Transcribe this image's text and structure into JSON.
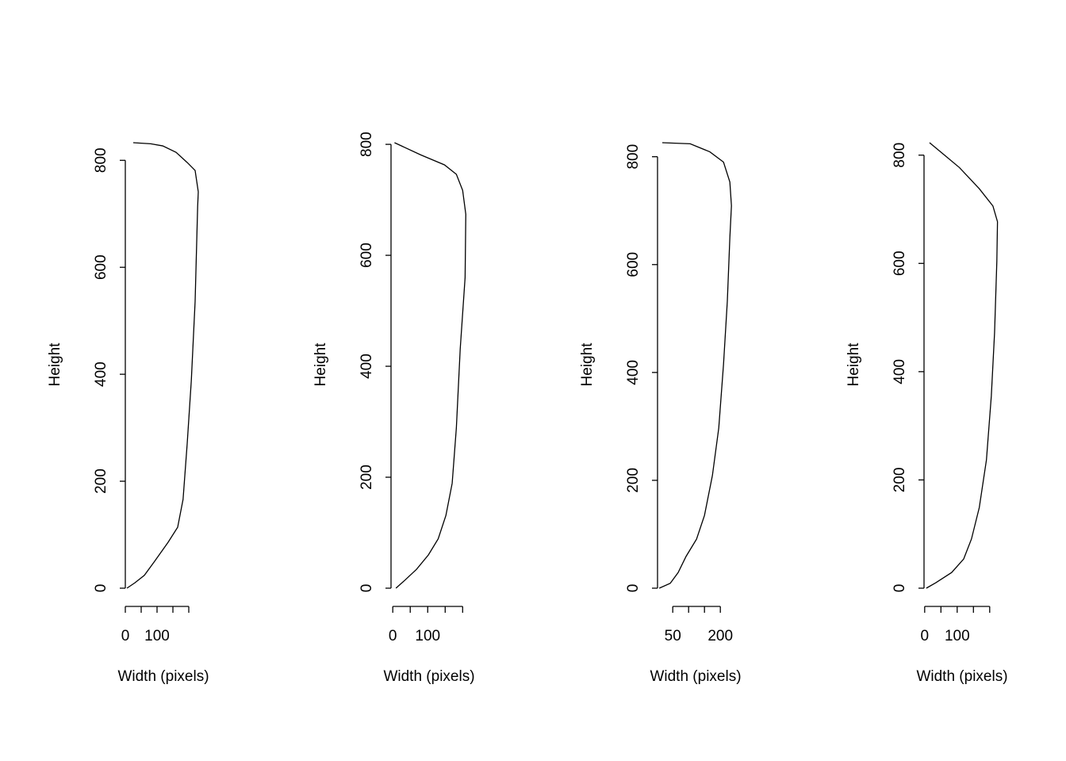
{
  "chart_data": [
    {
      "type": "line",
      "xlabel": "Width (pixels)",
      "ylabel": "Height",
      "color": "#000000",
      "x": [
        5,
        30,
        60,
        92,
        135,
        165,
        182,
        195,
        208,
        220,
        228,
        230,
        220,
        195,
        160,
        118,
        80,
        25
      ],
      "values": [
        0,
        10,
        24,
        50,
        86,
        114,
        166,
        270,
        388,
        536,
        714,
        741,
        781,
        796,
        815,
        827,
        831,
        833
      ],
      "xlim": [
        0,
        250
      ],
      "ylim": [
        0,
        833
      ],
      "xticks": [
        0,
        {
          "value": 50,
          "label": null
        },
        100,
        {
          "value": 150,
          "label": null
        },
        {
          "value": 200,
          "label": null
        }
      ],
      "yticks": [
        0,
        200,
        400,
        600,
        800
      ]
    },
    {
      "type": "line",
      "xlabel": "Width (pixels)",
      "ylabel": "Height",
      "color": "#000000",
      "x": [
        9,
        34,
        68,
        102,
        130,
        152,
        170,
        182,
        193,
        207,
        209,
        200,
        182,
        148,
        80,
        5
      ],
      "values": [
        0,
        14,
        34,
        60,
        89,
        131,
        189,
        289,
        431,
        560,
        674,
        717,
        746,
        763,
        781,
        803
      ],
      "xlim": [
        -5,
        222
      ],
      "ylim": [
        0,
        803
      ],
      "xticks": [
        0,
        {
          "value": 50,
          "label": null
        },
        100,
        {
          "value": 150,
          "label": null
        },
        {
          "value": 200,
          "label": null
        }
      ],
      "yticks": [
        0,
        200,
        400,
        600,
        800
      ]
    },
    {
      "type": "line",
      "xlabel": "Width (pixels)",
      "ylabel": "Height",
      "color": "#000000",
      "x": [
        7.5,
        42,
        67,
        92,
        125,
        150,
        175,
        195,
        210,
        222,
        230,
        235,
        230,
        210,
        167,
        105,
        17
      ],
      "values": [
        0,
        9,
        29,
        59,
        91,
        135,
        209,
        297,
        415,
        532,
        650,
        709,
        753,
        790,
        809,
        824,
        826
      ],
      "xlim": [
        2,
        252
      ],
      "ylim": [
        0,
        826
      ],
      "xticks": [
        50,
        {
          "value": 100,
          "label": null
        },
        {
          "value": 150,
          "label": null
        },
        200
      ],
      "yticks": [
        0,
        200,
        400,
        600,
        800
      ]
    },
    {
      "type": "line",
      "xlabel": "Width (pixels)",
      "ylabel": "Height",
      "color": "#000000",
      "x": [
        5,
        34,
        83,
        120,
        144,
        168,
        190,
        205,
        215,
        222,
        224,
        210,
        168,
        107,
        59,
        15
      ],
      "values": [
        0,
        10,
        29,
        54,
        91,
        149,
        237,
        355,
        472,
        604,
        677,
        706,
        738,
        777,
        801,
        823
      ],
      "xlim": [
        -2,
        242
      ],
      "ylim": [
        0,
        823
      ],
      "xticks": [
        0,
        {
          "value": 50,
          "label": null
        },
        100,
        {
          "value": 150,
          "label": null
        },
        {
          "value": 200,
          "label": null
        }
      ],
      "yticks": [
        0,
        200,
        400,
        600,
        800
      ]
    }
  ]
}
